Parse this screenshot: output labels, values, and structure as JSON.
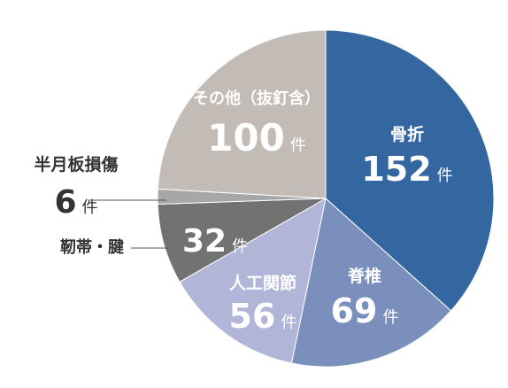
{
  "chart_data": {
    "type": "pie",
    "unit": "件",
    "slices": [
      {
        "name": "骨折",
        "value": 152,
        "color": "#34669f"
      },
      {
        "name": "脊椎",
        "value": 69,
        "color": "#7b8fbd"
      },
      {
        "name": "人工関節",
        "value": 56,
        "color": "#b1b6d9"
      },
      {
        "name": "靭帯・腱",
        "value": 32,
        "color": "#727272"
      },
      {
        "name": "半月板損傷",
        "value": 6,
        "color": "#a7a7a7"
      },
      {
        "name": "その他（抜釘含）",
        "value": 100,
        "color": "#c3bbb6"
      }
    ]
  }
}
